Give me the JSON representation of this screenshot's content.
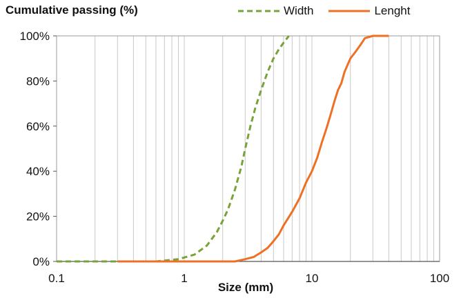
{
  "chart_data": {
    "type": "line",
    "ylabel": "Cumulative passing (%)",
    "xlabel": "Size (mm)",
    "x_scale": "log",
    "xlim": [
      0.1,
      100
    ],
    "ylim": [
      0,
      100
    ],
    "x_ticks": [
      "0.1",
      "1",
      "10",
      "100"
    ],
    "y_ticks": [
      "0%",
      "20%",
      "40%",
      "60%",
      "80%",
      "100%"
    ],
    "grid": "vertical minor and major log gridlines",
    "legend_position": "top-right",
    "series": [
      {
        "name": "Width",
        "color": "#77a33a",
        "style": "dashed",
        "points": [
          [
            0.1,
            0
          ],
          [
            0.3,
            0
          ],
          [
            0.6,
            0
          ],
          [
            0.9,
            1
          ],
          [
            1.2,
            3
          ],
          [
            1.5,
            7
          ],
          [
            1.8,
            13
          ],
          [
            2.0,
            18
          ],
          [
            2.2,
            23
          ],
          [
            2.5,
            32
          ],
          [
            2.8,
            42
          ],
          [
            3.0,
            50
          ],
          [
            3.3,
            60
          ],
          [
            3.6,
            68
          ],
          [
            4.0,
            76
          ],
          [
            4.5,
            84
          ],
          [
            5.0,
            90
          ],
          [
            5.5,
            94
          ],
          [
            6.0,
            97
          ],
          [
            6.6,
            100
          ]
        ]
      },
      {
        "name": "Lenght",
        "color": "#ee7024",
        "style": "solid",
        "points": [
          [
            0.3,
            0
          ],
          [
            1,
            0
          ],
          [
            2.5,
            0
          ],
          [
            3.0,
            1
          ],
          [
            3.5,
            2
          ],
          [
            4.0,
            4
          ],
          [
            4.5,
            6
          ],
          [
            5.0,
            9
          ],
          [
            5.5,
            12
          ],
          [
            6.0,
            16
          ],
          [
            7.0,
            22
          ],
          [
            8.0,
            28
          ],
          [
            9.0,
            35
          ],
          [
            10.0,
            40
          ],
          [
            11.0,
            46
          ],
          [
            12.0,
            53
          ],
          [
            13.0,
            59
          ],
          [
            14.0,
            65
          ],
          [
            15.0,
            71
          ],
          [
            16.0,
            76
          ],
          [
            17.0,
            79
          ],
          [
            18.0,
            84
          ],
          [
            20.0,
            90
          ],
          [
            22.0,
            93
          ],
          [
            24.0,
            96
          ],
          [
            26.0,
            99
          ],
          [
            30.0,
            100
          ],
          [
            40.0,
            100
          ]
        ]
      }
    ]
  }
}
